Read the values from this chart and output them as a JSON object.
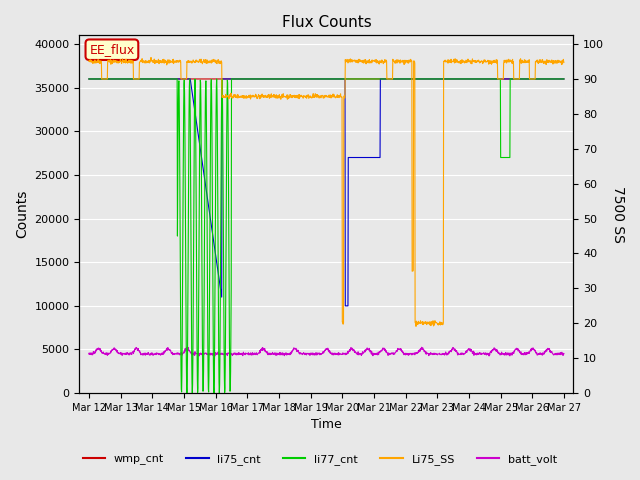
{
  "title": "Flux Counts",
  "xlabel": "Time",
  "ylabel_left": "Counts",
  "ylabel_right": "7500 SS",
  "ylim_left": [
    0,
    41000
  ],
  "ylim_right": [
    0,
    102.5
  ],
  "annotation_text": "EE_flux",
  "annotation_color": "#cc0000",
  "annotation_bg": "#ffffcc",
  "bg_color": "#e8e8e8",
  "plot_bg": "#f0f0f0",
  "legend_entries": [
    "wmp_cnt",
    "li75_cnt",
    "li77_cnt",
    "Li75_SS",
    "batt_volt"
  ],
  "legend_colors": [
    "#cc0000",
    "#0000cc",
    "#00cc00",
    "#ffa500",
    "#cc00cc"
  ],
  "x_ticks": [
    "Mar 12",
    "Mar 13",
    "Mar 14",
    "Mar 15",
    "Mar 16",
    "Mar 17",
    "Mar 18",
    "Mar 19",
    "Mar 20",
    "Mar 21",
    "Mar 22",
    "Mar 23",
    "Mar 24",
    "Mar 25",
    "Mar 26",
    "Mar 27"
  ],
  "x_tick_positions": [
    0,
    1,
    2,
    3,
    4,
    5,
    6,
    7,
    8,
    9,
    10,
    11,
    12,
    13,
    14,
    15
  ],
  "left_yticks": [
    0,
    5000,
    10000,
    15000,
    20000,
    25000,
    30000,
    35000,
    40000
  ],
  "right_yticks": [
    0,
    10,
    20,
    30,
    40,
    50,
    60,
    70,
    80,
    90,
    100
  ]
}
